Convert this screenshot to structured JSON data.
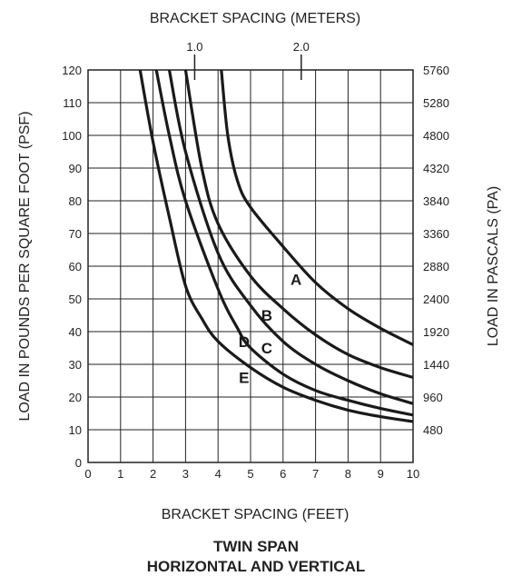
{
  "chart_data": {
    "type": "line",
    "title_top": "BRACKET SPACING (METERS)",
    "xlabel": "BRACKET SPACING (FEET)",
    "ylabel_left": "LOAD IN POUNDS PER SQUARE FOOT (PSF)",
    "ylabel_right": "LOAD IN PASCALS (PA)",
    "caption_line1": "TWIN SPAN",
    "caption_line2": "HORIZONTAL AND VERTICAL",
    "xlim": [
      0,
      10
    ],
    "ylim": [
      0,
      120
    ],
    "x_ticks": [
      "0",
      "1",
      "2",
      "3",
      "4",
      "5",
      "6",
      "7",
      "8",
      "9",
      "10"
    ],
    "y_ticks_left": [
      "0",
      "10",
      "20",
      "30",
      "40",
      "50",
      "60",
      "70",
      "80",
      "90",
      "100",
      "110",
      "120"
    ],
    "y_ticks_right": [
      {
        "y": 10,
        "label": "480"
      },
      {
        "y": 20,
        "label": "960"
      },
      {
        "y": 30,
        "label": "1440"
      },
      {
        "y": 40,
        "label": "1920"
      },
      {
        "y": 50,
        "label": "2400"
      },
      {
        "y": 60,
        "label": "2880"
      },
      {
        "y": 70,
        "label": "3360"
      },
      {
        "y": 80,
        "label": "3840"
      },
      {
        "y": 90,
        "label": "4320"
      },
      {
        "y": 100,
        "label": "4800"
      },
      {
        "y": 110,
        "label": "5280"
      },
      {
        "y": 120,
        "label": "5760"
      }
    ],
    "top_ticks": [
      {
        "x": 3.28,
        "label": "1.0"
      },
      {
        "x": 6.56,
        "label": "2.0"
      }
    ],
    "grid": true,
    "series": [
      {
        "name": "A",
        "label_at": [
          6.4,
          56
        ],
        "points": [
          [
            4.1,
            120
          ],
          [
            4.3,
            100
          ],
          [
            4.6,
            86
          ],
          [
            5.0,
            78
          ],
          [
            6.0,
            66
          ],
          [
            7.0,
            55
          ],
          [
            8.0,
            47
          ],
          [
            9.0,
            41
          ],
          [
            10.0,
            36
          ]
        ]
      },
      {
        "name": "B",
        "label_at": [
          5.5,
          45
        ],
        "points": [
          [
            3.0,
            120
          ],
          [
            3.5,
            90
          ],
          [
            4.0,
            73
          ],
          [
            5.0,
            57
          ],
          [
            6.0,
            47
          ],
          [
            7.0,
            39
          ],
          [
            8.0,
            33
          ],
          [
            9.0,
            29
          ],
          [
            10.0,
            26
          ]
        ]
      },
      {
        "name": "C",
        "label_at": [
          5.5,
          35
        ],
        "points": [
          [
            2.5,
            120
          ],
          [
            3.0,
            95
          ],
          [
            4.0,
            64
          ],
          [
            5.0,
            48
          ],
          [
            6.0,
            37
          ],
          [
            7.0,
            30
          ],
          [
            8.0,
            25
          ],
          [
            9.0,
            21
          ],
          [
            10.0,
            18
          ]
        ]
      },
      {
        "name": "D",
        "label_at": [
          4.8,
          37
        ],
        "points": [
          [
            2.1,
            120
          ],
          [
            2.5,
            100
          ],
          [
            3.0,
            80
          ],
          [
            4.0,
            53
          ],
          [
            4.6,
            41
          ],
          [
            5.0,
            35
          ],
          [
            6.0,
            27
          ],
          [
            7.0,
            22
          ],
          [
            8.0,
            19
          ],
          [
            9.0,
            16.5
          ],
          [
            10.0,
            14.5
          ]
        ]
      },
      {
        "name": "E",
        "label_at": [
          4.8,
          26
        ],
        "points": [
          [
            1.6,
            120
          ],
          [
            2.0,
            98
          ],
          [
            2.5,
            75
          ],
          [
            3.0,
            54
          ],
          [
            3.5,
            44
          ],
          [
            4.0,
            37
          ],
          [
            5.0,
            29
          ],
          [
            6.0,
            23
          ],
          [
            7.0,
            19
          ],
          [
            8.0,
            16
          ],
          [
            9.0,
            14
          ],
          [
            10.0,
            12.5
          ]
        ]
      }
    ]
  }
}
